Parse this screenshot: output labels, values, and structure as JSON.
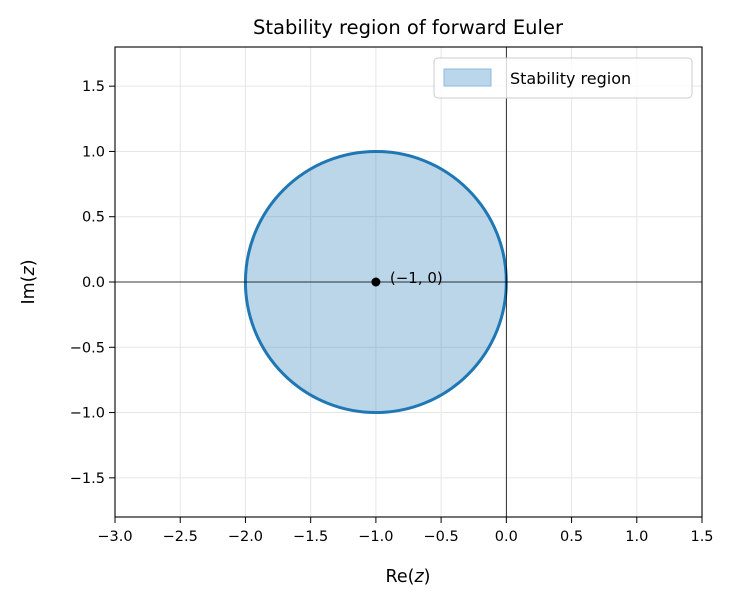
{
  "chart_data": {
    "type": "area",
    "title": "Stability region of forward Euler",
    "xlabel": "Re(z)",
    "ylabel": "Im(z)",
    "xlim": [
      -3.0,
      1.5
    ],
    "ylim": [
      -1.8,
      1.8
    ],
    "xticks": [
      -3.0,
      -2.5,
      -2.0,
      -1.5,
      -1.0,
      -0.5,
      0.0,
      0.5,
      1.0,
      1.5
    ],
    "xtick_labels": [
      "−3.0",
      "−2.5",
      "−2.0",
      "−1.5",
      "−1.0",
      "−0.5",
      "0.0",
      "0.5",
      "1.0",
      "1.5"
    ],
    "yticks": [
      -1.5,
      -1.0,
      -0.5,
      0.0,
      0.5,
      1.0,
      1.5
    ],
    "ytick_labels": [
      "−1.5",
      "−1.0",
      "−0.5",
      "0.0",
      "0.5",
      "1.0",
      "1.5"
    ],
    "grid": true,
    "legend_position": "upper right",
    "series": [
      {
        "name": "Stability region",
        "shape": "circle",
        "center": [
          -1.0,
          0.0
        ],
        "radius": 1.0,
        "fill_color": "#1f77b4",
        "fill_alpha": 0.3,
        "edge_color": "#1f77b4"
      }
    ],
    "reference_lines": [
      {
        "orientation": "horizontal",
        "value": 0.0,
        "color": "#000000"
      },
      {
        "orientation": "vertical",
        "value": 0.0,
        "color": "#000000"
      }
    ],
    "points": [
      {
        "x": -1.0,
        "y": 0.0,
        "label": "(−1, 0)",
        "color": "#000000"
      }
    ],
    "annotations": [
      {
        "text": "(−1, 0)",
        "x": -1.0,
        "y": 0.0
      }
    ]
  },
  "legend": {
    "items": [
      {
        "label": "Stability region",
        "swatch_fill": "#bad6ea",
        "swatch_edge": "#8fbbda"
      }
    ]
  },
  "colors": {
    "primary": "#1f77b4",
    "fill": "#bad6ea",
    "grid": "#e6e6e6",
    "axis": "#000000"
  }
}
